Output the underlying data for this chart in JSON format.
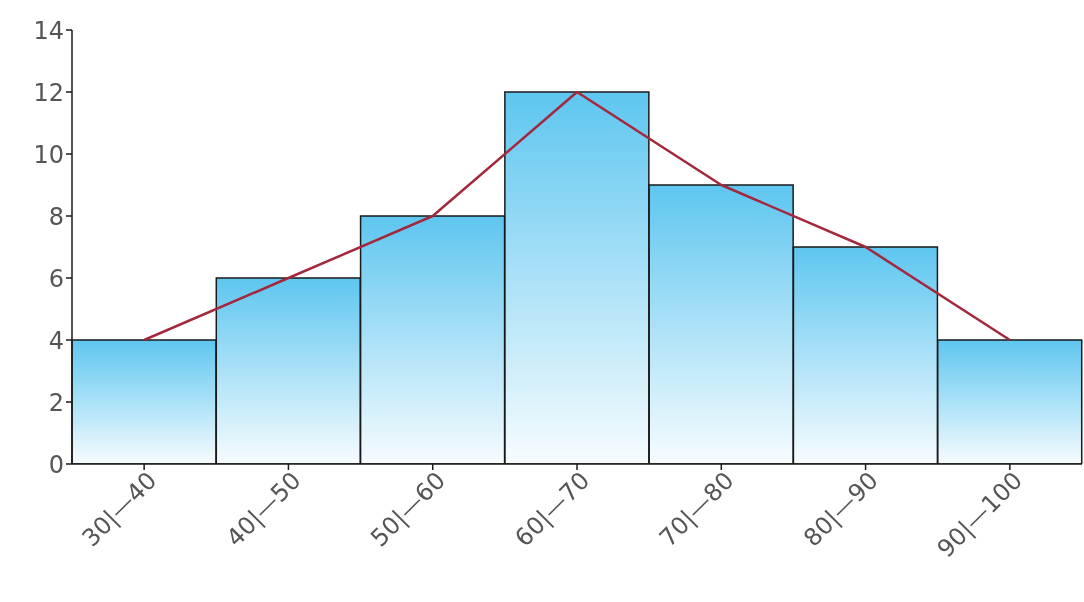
{
  "chart_data": {
    "type": "bar",
    "categories": [
      "30|—40",
      "40|—50",
      "50|—60",
      "60|—70",
      "70|—80",
      "80|—90",
      "90|—100"
    ],
    "series": [
      {
        "color": "#5ec6f0",
        "values": [
          4,
          6,
          8,
          12,
          9,
          7,
          4
        ]
      },
      {
        "type": "line",
        "color": "#a3283c",
        "values": [
          4,
          6,
          8,
          12,
          9,
          7,
          4
        ]
      }
    ],
    "ylim": [
      0,
      14
    ],
    "yticks": [
      0,
      2,
      4,
      6,
      8,
      10,
      12,
      14
    ],
    "grid": false,
    "legend": false,
    "marker": "none",
    "line_style": "solid"
  }
}
